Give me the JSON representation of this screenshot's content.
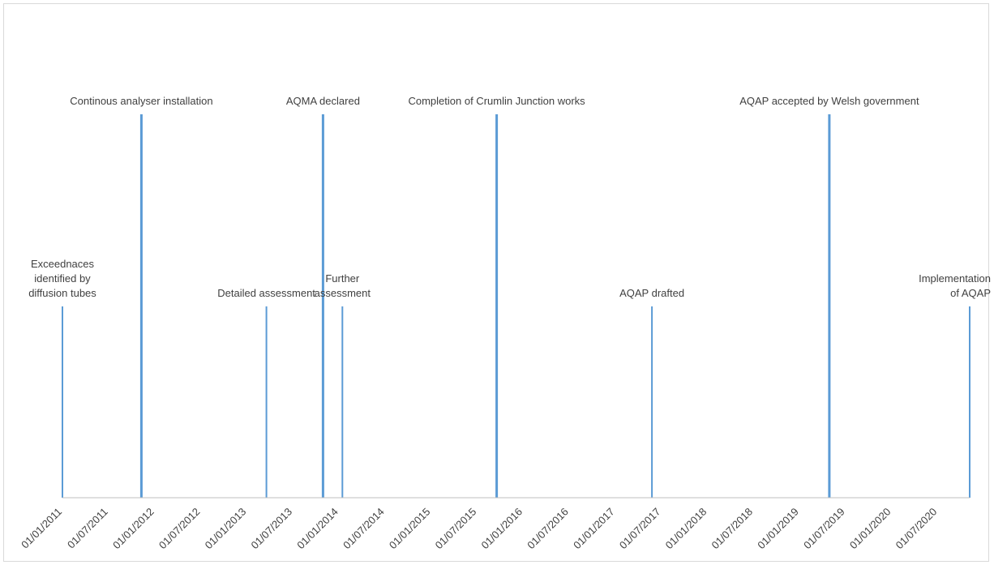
{
  "chart_data": {
    "type": "bar",
    "title": "",
    "xlabel": "",
    "ylabel": "",
    "x_axis": {
      "type": "date",
      "range": [
        "2011-01-01",
        "2020-12-31"
      ],
      "tick_labels": [
        "01/01/2011",
        "01/07/2011",
        "01/01/2012",
        "01/07/2012",
        "01/01/2013",
        "01/07/2013",
        "01/01/2014",
        "01/07/2014",
        "01/01/2015",
        "01/07/2015",
        "01/01/2016",
        "01/07/2016",
        "01/01/2017",
        "01/07/2017",
        "01/01/2018",
        "01/07/2018",
        "01/01/2019",
        "01/07/2019",
        "01/01/2020",
        "01/07/2020"
      ]
    },
    "grid": false,
    "legend": "none",
    "series_color": "#5b9bd5",
    "events": [
      {
        "date": "2011-01-01",
        "height": 1,
        "label_lines": [
          "Exceednaces",
          "identified by",
          "diffusion tubes"
        ]
      },
      {
        "date": "2011-11-15",
        "height": 2,
        "label_lines": [
          "Continous analyser installation"
        ]
      },
      {
        "date": "2013-04-01",
        "height": 1,
        "label_lines": [
          "Detailed assessment"
        ]
      },
      {
        "date": "2013-11-15",
        "height": 2,
        "label_lines": [
          "AQMA declared"
        ]
      },
      {
        "date": "2014-02-01",
        "height": 1,
        "label_lines": [
          "Further",
          "assessment"
        ]
      },
      {
        "date": "2015-10-15",
        "height": 2,
        "label_lines": [
          "Completion of Crumlin Junction works"
        ]
      },
      {
        "date": "2017-07-01",
        "height": 1,
        "label_lines": [
          "AQAP drafted"
        ]
      },
      {
        "date": "2019-06-15",
        "height": 2,
        "label_lines": [
          "AQAP accepted by Welsh government"
        ]
      },
      {
        "date": "2020-12-31",
        "height": 1,
        "label_lines": [
          "Implementation",
          "of AQAP"
        ]
      }
    ]
  }
}
